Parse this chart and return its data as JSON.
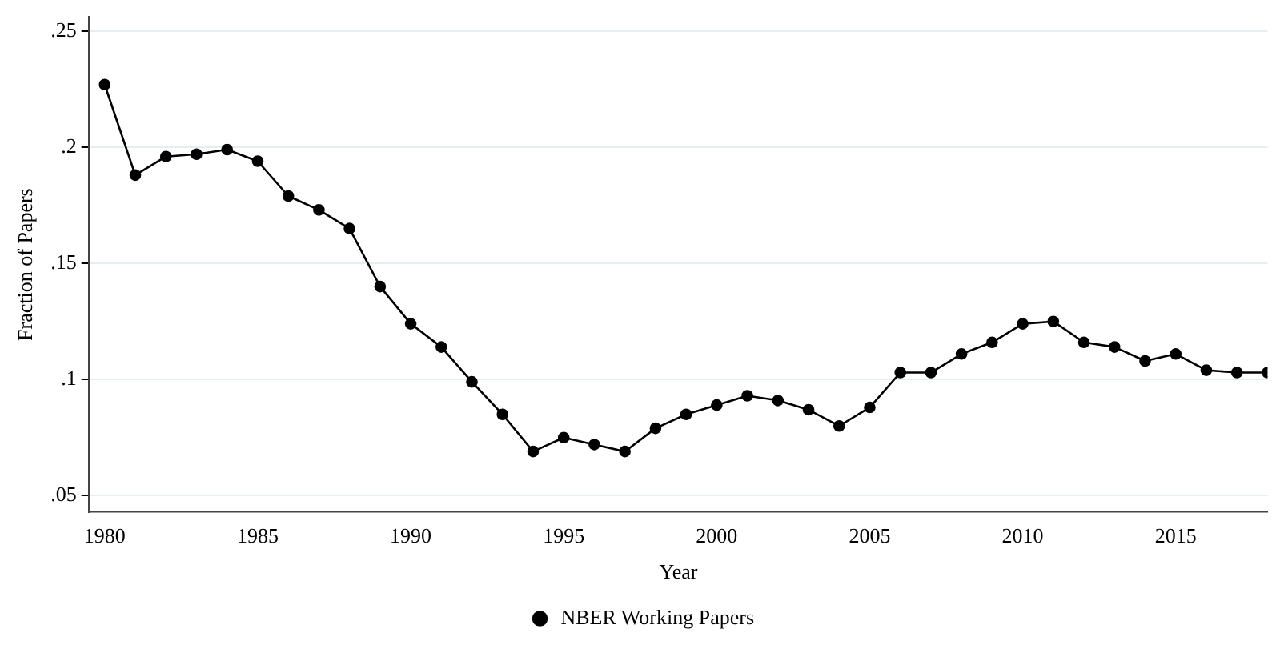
{
  "chart_data": {
    "type": "line",
    "xlabel": "Year",
    "ylabel": "Fraction of Papers",
    "x": [
      1980,
      1981,
      1982,
      1983,
      1984,
      1985,
      1986,
      1987,
      1988,
      1989,
      1990,
      1991,
      1992,
      1993,
      1994,
      1995,
      1996,
      1997,
      1998,
      1999,
      2000,
      2001,
      2002,
      2003,
      2004,
      2005,
      2006,
      2007,
      2008,
      2009,
      2010,
      2011,
      2012,
      2013,
      2014,
      2015,
      2016,
      2017,
      2018
    ],
    "series": [
      {
        "name": "NBER Working Papers",
        "color": "#000000",
        "values": [
          0.227,
          0.188,
          0.196,
          0.197,
          0.199,
          0.194,
          0.179,
          0.173,
          0.165,
          0.14,
          0.124,
          0.114,
          0.099,
          0.085,
          0.069,
          0.075,
          0.072,
          0.069,
          0.079,
          0.085,
          0.089,
          0.093,
          0.091,
          0.087,
          0.08,
          0.088,
          0.103,
          0.103,
          0.111,
          0.116,
          0.124,
          0.125,
          0.116,
          0.114,
          0.108,
          0.111,
          0.104,
          0.103,
          0.103
        ]
      }
    ],
    "xlim": [
      1979.5,
      2018
    ],
    "xticks": [
      1980,
      1985,
      1990,
      1995,
      2000,
      2005,
      2010,
      2015
    ],
    "ylim": [
      0.043,
      0.256
    ],
    "yticks": [
      {
        "value": 0.05,
        "label": ".05"
      },
      {
        "value": 0.1,
        "label": ".1"
      },
      {
        "value": 0.15,
        "label": ".15"
      },
      {
        "value": 0.2,
        "label": ".2"
      },
      {
        "value": 0.25,
        "label": ".25"
      }
    ],
    "grid": "y",
    "legend": "bottom",
    "marker": "circle",
    "line_style": "solid"
  }
}
